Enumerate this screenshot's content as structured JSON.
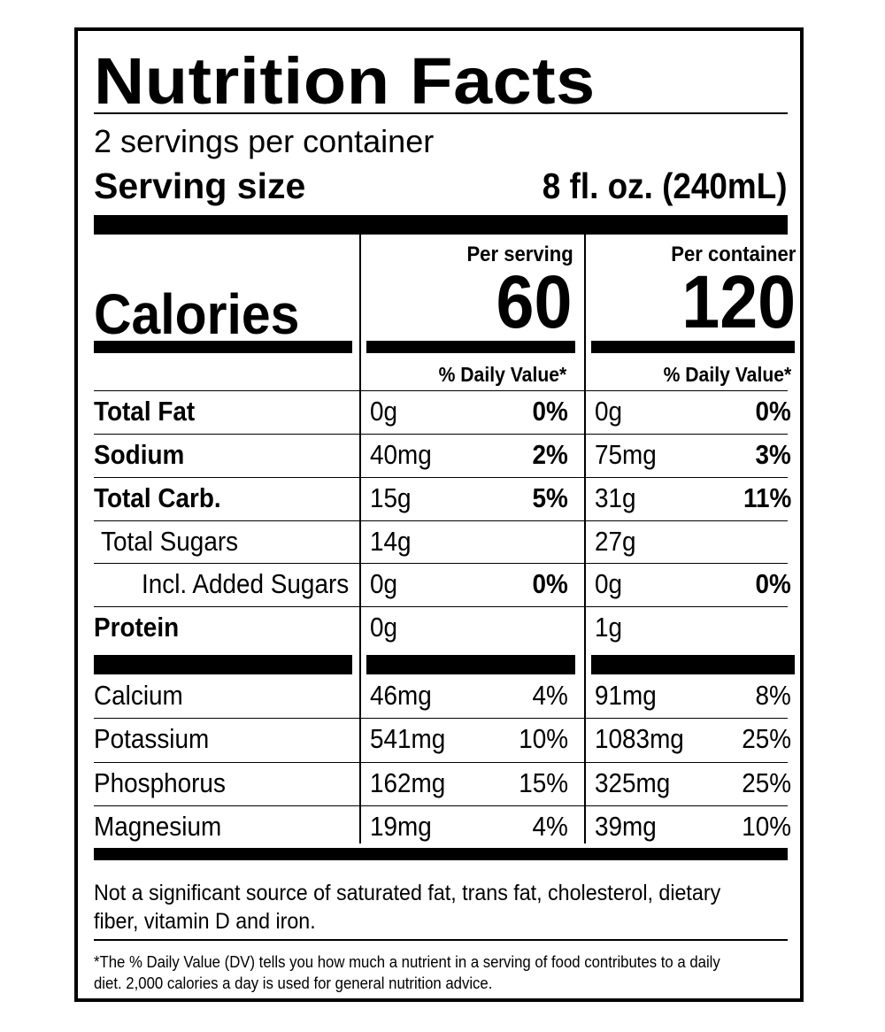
{
  "title": "Nutrition Facts",
  "servings_per_container": "2 servings per container",
  "serving_size_label": "Serving size",
  "serving_size_value": "8 fl. oz. (240mL)",
  "columns": [
    {
      "header": "Per serving",
      "calories": "60",
      "dv_header": "% Daily Value*"
    },
    {
      "header": "Per container",
      "calories": "120",
      "dv_header": "% Daily Value*"
    }
  ],
  "calories_label": "Calories",
  "nutrients": [
    {
      "label": "Total Fat",
      "bold": true,
      "serving": {
        "amount": "0g",
        "dv": "0%"
      },
      "container": {
        "amount": "0g",
        "dv": "0%"
      }
    },
    {
      "label": "Sodium",
      "bold": true,
      "serving": {
        "amount": "40mg",
        "dv": "2%"
      },
      "container": {
        "amount": "75mg",
        "dv": "3%"
      }
    },
    {
      "label": "Total Carb.",
      "bold": true,
      "serving": {
        "amount": "15g",
        "dv": "5%"
      },
      "container": {
        "amount": "31g",
        "dv": "11%"
      }
    },
    {
      "label": "Total Sugars",
      "bold": false,
      "serving": {
        "amount": "14g",
        "dv": ""
      },
      "container": {
        "amount": "27g",
        "dv": ""
      }
    },
    {
      "label": "Incl. Added Sugars",
      "bold": false,
      "serving": {
        "amount": "0g",
        "dv": "0%"
      },
      "container": {
        "amount": "0g",
        "dv": "0%"
      }
    },
    {
      "label": "Protein",
      "bold": true,
      "serving": {
        "amount": "0g",
        "dv": ""
      },
      "container": {
        "amount": "1g",
        "dv": ""
      }
    }
  ],
  "minerals": [
    {
      "label": "Calcium",
      "serving": {
        "amount": "46mg",
        "dv": "4%"
      },
      "container": {
        "amount": "91mg",
        "dv": "8%"
      }
    },
    {
      "label": "Potassium",
      "serving": {
        "amount": "541mg",
        "dv": "10%"
      },
      "container": {
        "amount": "1083mg",
        "dv": "25%"
      }
    },
    {
      "label": "Phosphorus",
      "serving": {
        "amount": "162mg",
        "dv": "15%"
      },
      "container": {
        "amount": "325mg",
        "dv": "25%"
      }
    },
    {
      "label": "Magnesium",
      "serving": {
        "amount": "19mg",
        "dv": "4%"
      },
      "container": {
        "amount": "39mg",
        "dv": "10%"
      }
    }
  ],
  "footnote_not_significant": "Not a significant source of saturated fat, trans fat, cholesterol, dietary fiber, vitamin D and iron.",
  "footnote_dv": "*The % Daily Value (DV) tells you how much a nutrient in a serving of food contributes to a daily diet. 2,000 calories a day is used for general nutrition advice."
}
